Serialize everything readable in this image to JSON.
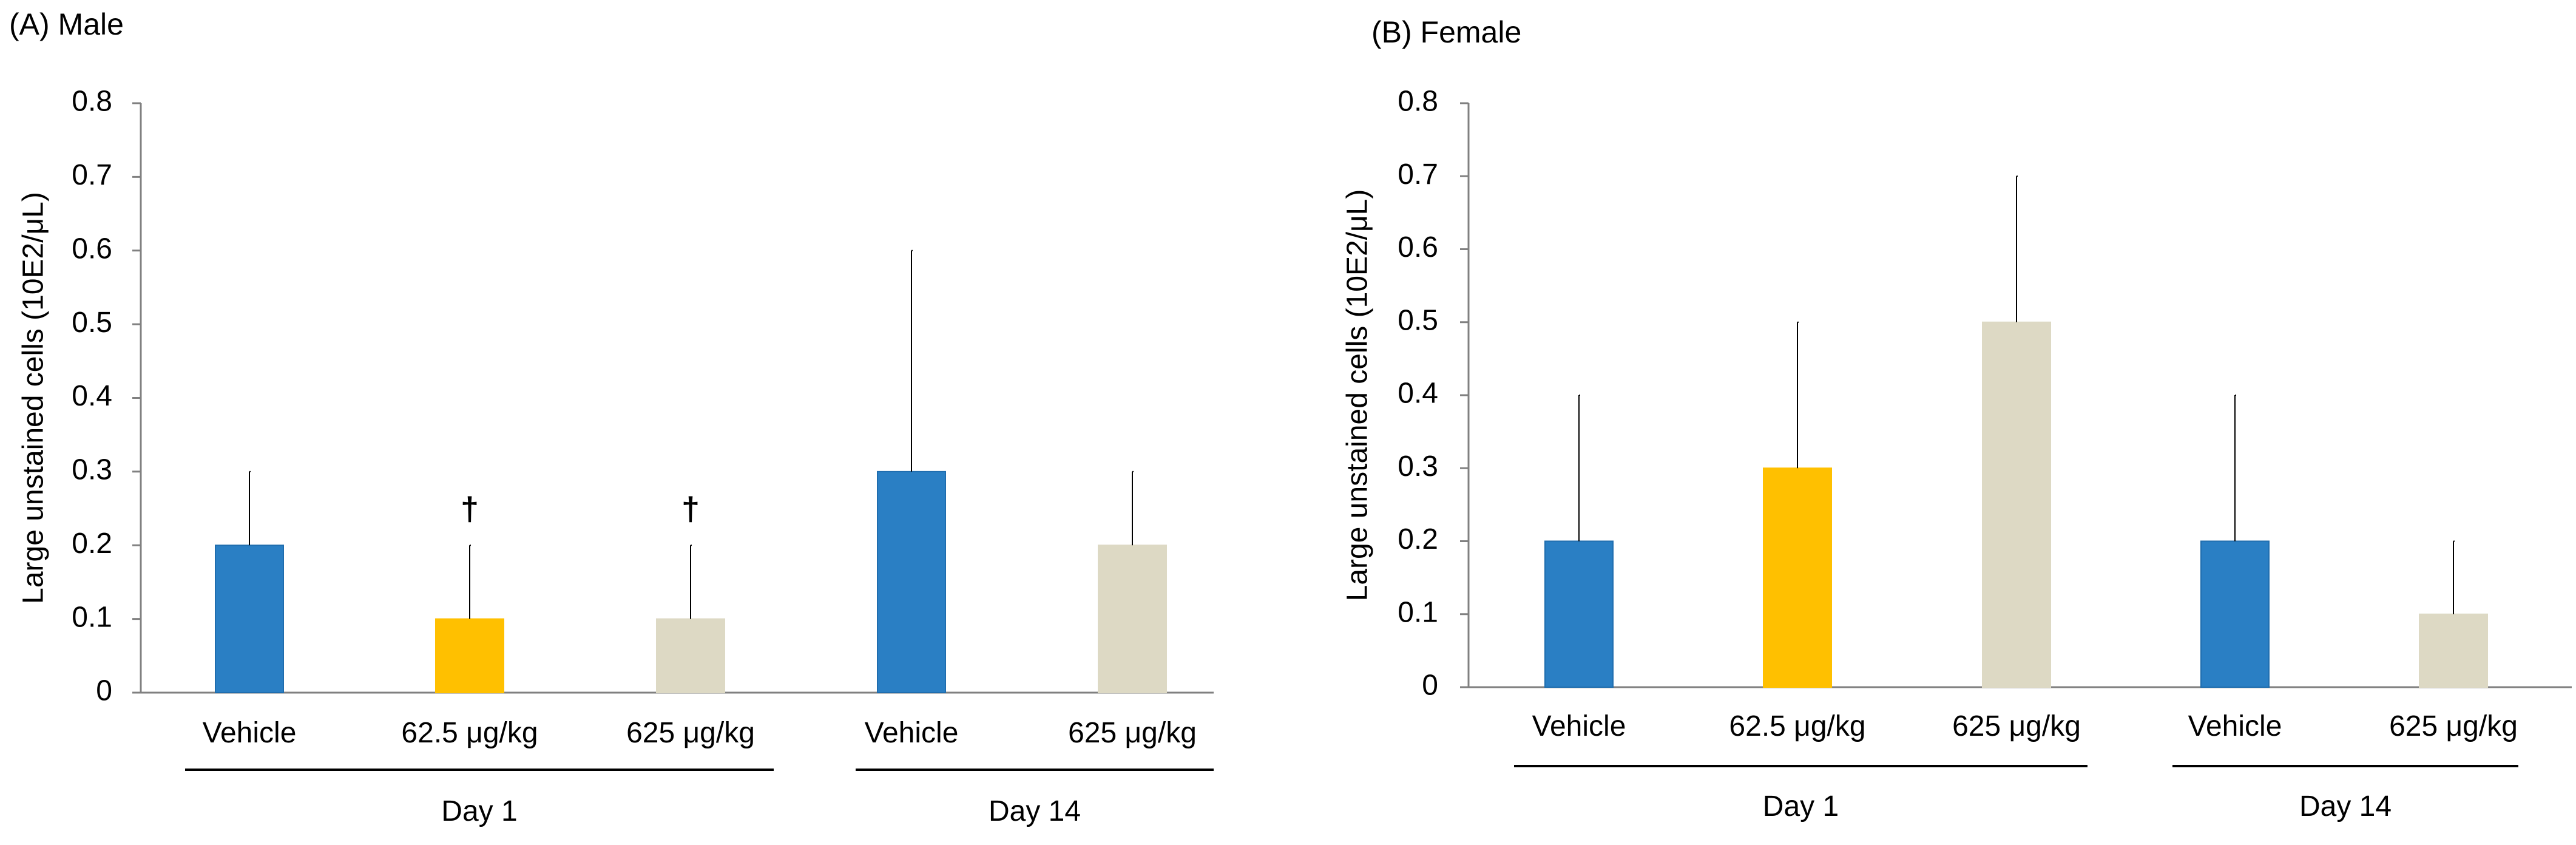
{
  "chart_data": [
    {
      "type": "bar",
      "panel_label": "(A) Male",
      "ylabel": "Large unstained cells (10E2/μL)",
      "ylim": [
        0,
        0.8
      ],
      "yticks": [
        "0",
        "0.1",
        "0.2",
        "0.3",
        "0.4",
        "0.5",
        "0.6",
        "0.7",
        "0.8"
      ],
      "categories": [
        "Vehicle",
        "62.5 μg/kg",
        "625 μg/kg",
        "Vehicle",
        "625 μg/kg"
      ],
      "values": [
        0.2,
        0.1,
        0.1,
        0.3,
        0.2
      ],
      "error_upper": [
        0.3,
        0.2,
        0.2,
        0.6,
        0.3
      ],
      "colors": [
        "#2A7FC4",
        "#FFC000",
        "#DDD9C4",
        "#2A7FC4",
        "#DDD9C4"
      ],
      "markers": [
        "",
        "†",
        "†",
        "",
        ""
      ],
      "groups": [
        {
          "label": "Day 1",
          "categories": [
            0,
            1,
            2
          ]
        },
        {
          "label": "Day 14",
          "categories": [
            3,
            4
          ]
        }
      ],
      "grid": false
    },
    {
      "type": "bar",
      "panel_label": "(B) Female",
      "ylabel": "Large unstained cells (10E2/μL)",
      "ylim": [
        0,
        0.8
      ],
      "yticks": [
        "0",
        "0.1",
        "0.2",
        "0.3",
        "0.4",
        "0.5",
        "0.6",
        "0.7",
        "0.8"
      ],
      "categories": [
        "Vehicle",
        "62.5 μg/kg",
        "625 μg/kg",
        "Vehicle",
        "625 μg/kg"
      ],
      "values": [
        0.2,
        0.3,
        0.5,
        0.2,
        0.1
      ],
      "error_upper": [
        0.4,
        0.5,
        0.7,
        0.4,
        0.2
      ],
      "colors": [
        "#2A7FC4",
        "#FFC000",
        "#DDD9C4",
        "#2A7FC4",
        "#DDD9C4"
      ],
      "markers": [
        "",
        "",
        "",
        "",
        ""
      ],
      "groups": [
        {
          "label": "Day 1",
          "categories": [
            0,
            1,
            2
          ]
        },
        {
          "label": "Day 14",
          "categories": [
            3,
            4
          ]
        }
      ],
      "grid": false
    }
  ]
}
